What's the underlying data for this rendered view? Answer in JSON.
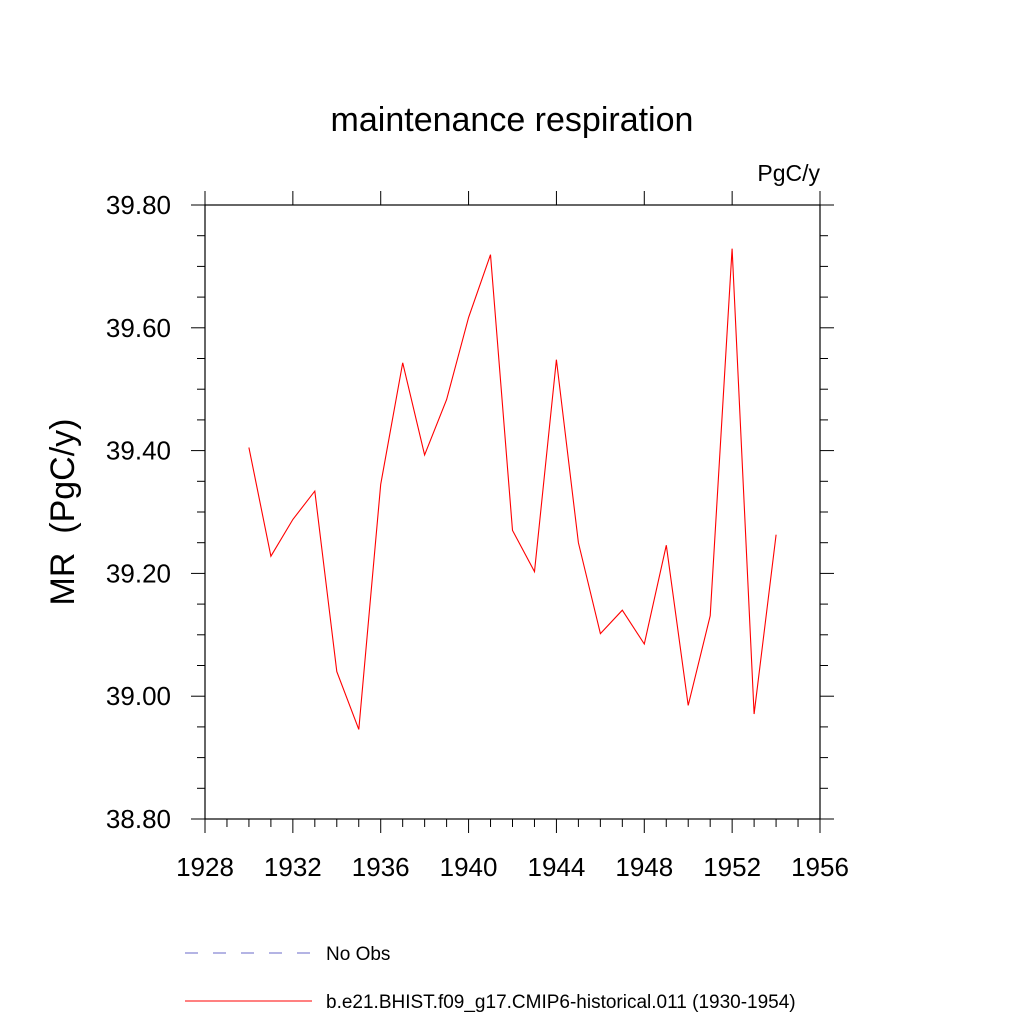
{
  "chart_data": {
    "type": "line",
    "title": "maintenance respiration",
    "units_label": "PgC/y",
    "ylabel": "MR  (PgC/y)",
    "xlabel": "",
    "xlim": [
      1928,
      1956
    ],
    "ylim": [
      38.8,
      39.8
    ],
    "x_ticks": [
      "1928",
      "1932",
      "1936",
      "1940",
      "1944",
      "1948",
      "1952",
      "1956"
    ],
    "y_ticks": [
      "38.80",
      "39.00",
      "39.20",
      "39.40",
      "39.60",
      "39.80"
    ],
    "grid": false,
    "series": [
      {
        "name": "b.e21.BHIST.f09_g17.CMIP6-historical.011 (1930-1954)",
        "color": "#ff0000",
        "x": [
          1930,
          1931,
          1932,
          1933,
          1934,
          1935,
          1936,
          1937,
          1938,
          1939,
          1940,
          1941,
          1942,
          1943,
          1944,
          1945,
          1946,
          1947,
          1948,
          1949,
          1950,
          1951,
          1952,
          1953,
          1954
        ],
        "y": [
          39.405,
          39.228,
          39.288,
          39.334,
          39.04,
          38.946,
          39.345,
          39.543,
          39.393,
          39.483,
          39.617,
          39.719,
          39.27,
          39.203,
          39.548,
          39.25,
          39.102,
          39.14,
          39.085,
          39.246,
          38.985,
          39.131,
          39.729,
          38.971,
          39.263
        ]
      }
    ],
    "legend": {
      "placement": "bottom",
      "entries": [
        {
          "label": "No Obs",
          "color": "#6a6ac8",
          "style": "dashed"
        },
        {
          "label": "b.e21.BHIST.f09_g17.CMIP6-historical.011 (1930-1954)",
          "color": "#ff0000",
          "style": "solid"
        }
      ]
    }
  }
}
